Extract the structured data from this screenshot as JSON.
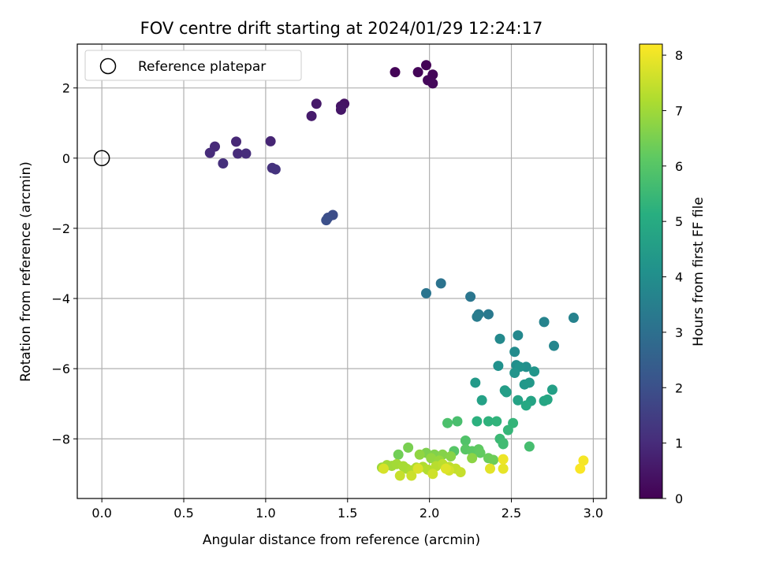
{
  "chart_data": {
    "type": "scatter",
    "title": "FOV centre drift starting at 2024/01/29 12:24:17",
    "xlabel": "Angular distance from reference (arcmin)",
    "ylabel": "Rotation from reference (arcmin)",
    "xlim": [
      -0.15,
      3.08
    ],
    "ylim": [
      -9.7,
      3.25
    ],
    "xticks": [
      "0.0",
      "0.5",
      "1.0",
      "1.5",
      "2.0",
      "2.5",
      "3.0"
    ],
    "yticks": [
      "2",
      "0",
      "−2",
      "−4",
      "−6",
      "−8"
    ],
    "grid": true,
    "legend": {
      "position": "top-left",
      "entries": [
        "Reference platepar"
      ]
    },
    "reference_point": {
      "x": 0.0,
      "y": 0.0
    },
    "colorbar": {
      "label": "Hours from first FF file",
      "range": [
        0,
        8.2
      ],
      "ticks": [
        "0",
        "1",
        "2",
        "3",
        "4",
        "5",
        "6",
        "7",
        "8"
      ],
      "colormap": "viridis"
    },
    "points": [
      {
        "x": 1.98,
        "y": 2.65,
        "c": 0.05
      },
      {
        "x": 1.79,
        "y": 2.45,
        "c": 0.08
      },
      {
        "x": 1.93,
        "y": 2.45,
        "c": 0.1
      },
      {
        "x": 2.02,
        "y": 2.38,
        "c": 0.12
      },
      {
        "x": 1.99,
        "y": 2.22,
        "c": 0.15
      },
      {
        "x": 2.02,
        "y": 2.13,
        "c": 0.18
      },
      {
        "x": 1.48,
        "y": 1.55,
        "c": 0.4
      },
      {
        "x": 1.46,
        "y": 1.48,
        "c": 0.45
      },
      {
        "x": 1.46,
        "y": 1.38,
        "c": 0.5
      },
      {
        "x": 1.31,
        "y": 1.55,
        "c": 0.55
      },
      {
        "x": 1.28,
        "y": 1.2,
        "c": 0.6
      },
      {
        "x": 1.03,
        "y": 0.48,
        "c": 0.85
      },
      {
        "x": 0.82,
        "y": 0.47,
        "c": 0.9
      },
      {
        "x": 0.69,
        "y": 0.33,
        "c": 0.95
      },
      {
        "x": 0.66,
        "y": 0.15,
        "c": 1.0
      },
      {
        "x": 0.83,
        "y": 0.13,
        "c": 1.0
      },
      {
        "x": 0.88,
        "y": 0.13,
        "c": 1.05
      },
      {
        "x": 0.74,
        "y": -0.15,
        "c": 1.1
      },
      {
        "x": 1.04,
        "y": -0.28,
        "c": 1.15
      },
      {
        "x": 1.06,
        "y": -0.32,
        "c": 1.2
      },
      {
        "x": 1.41,
        "y": -1.62,
        "c": 1.9
      },
      {
        "x": 1.38,
        "y": -1.7,
        "c": 1.95
      },
      {
        "x": 1.37,
        "y": -1.77,
        "c": 2.0
      },
      {
        "x": 2.07,
        "y": -3.57,
        "c": 3.1
      },
      {
        "x": 1.98,
        "y": -3.85,
        "c": 3.15
      },
      {
        "x": 2.25,
        "y": -3.95,
        "c": 3.2
      },
      {
        "x": 2.36,
        "y": -4.45,
        "c": 3.3
      },
      {
        "x": 2.3,
        "y": -4.45,
        "c": 3.35
      },
      {
        "x": 2.29,
        "y": -4.52,
        "c": 3.4
      },
      {
        "x": 2.88,
        "y": -4.55,
        "c": 3.6
      },
      {
        "x": 2.7,
        "y": -4.67,
        "c": 3.65
      },
      {
        "x": 2.76,
        "y": -5.35,
        "c": 3.75
      },
      {
        "x": 2.54,
        "y": -5.05,
        "c": 3.8
      },
      {
        "x": 2.43,
        "y": -5.15,
        "c": 3.85
      },
      {
        "x": 2.52,
        "y": -5.52,
        "c": 3.9
      },
      {
        "x": 2.53,
        "y": -5.9,
        "c": 4.0
      },
      {
        "x": 2.59,
        "y": -5.95,
        "c": 4.05
      },
      {
        "x": 2.42,
        "y": -5.92,
        "c": 4.1
      },
      {
        "x": 2.55,
        "y": -5.95,
        "c": 4.15
      },
      {
        "x": 2.52,
        "y": -6.12,
        "c": 4.2
      },
      {
        "x": 2.64,
        "y": -6.08,
        "c": 4.25
      },
      {
        "x": 2.58,
        "y": -6.45,
        "c": 4.3
      },
      {
        "x": 2.61,
        "y": -6.4,
        "c": 4.35
      },
      {
        "x": 2.28,
        "y": -6.4,
        "c": 4.4
      },
      {
        "x": 2.46,
        "y": -6.62,
        "c": 4.5
      },
      {
        "x": 2.47,
        "y": -6.67,
        "c": 4.55
      },
      {
        "x": 2.75,
        "y": -6.6,
        "c": 4.6
      },
      {
        "x": 2.32,
        "y": -6.9,
        "c": 4.65
      },
      {
        "x": 2.54,
        "y": -6.9,
        "c": 4.7
      },
      {
        "x": 2.62,
        "y": -6.92,
        "c": 4.75
      },
      {
        "x": 2.7,
        "y": -6.92,
        "c": 4.8
      },
      {
        "x": 2.72,
        "y": -6.88,
        "c": 4.85
      },
      {
        "x": 2.59,
        "y": -7.05,
        "c": 4.9
      },
      {
        "x": 2.29,
        "y": -7.5,
        "c": 5.2
      },
      {
        "x": 2.36,
        "y": -7.5,
        "c": 5.25
      },
      {
        "x": 2.41,
        "y": -7.5,
        "c": 5.3
      },
      {
        "x": 2.51,
        "y": -7.55,
        "c": 5.35
      },
      {
        "x": 2.48,
        "y": -7.75,
        "c": 5.4
      },
      {
        "x": 2.43,
        "y": -8.0,
        "c": 5.5
      },
      {
        "x": 2.45,
        "y": -8.12,
        "c": 5.55
      },
      {
        "x": 2.45,
        "y": -8.15,
        "c": 5.6
      },
      {
        "x": 2.61,
        "y": -8.22,
        "c": 5.7
      },
      {
        "x": 2.17,
        "y": -7.5,
        "c": 5.75
      },
      {
        "x": 2.11,
        "y": -7.55,
        "c": 5.8
      },
      {
        "x": 2.22,
        "y": -8.05,
        "c": 5.9
      },
      {
        "x": 2.15,
        "y": -8.35,
        "c": 6.0
      },
      {
        "x": 2.22,
        "y": -8.3,
        "c": 6.05
      },
      {
        "x": 2.26,
        "y": -8.35,
        "c": 6.1
      },
      {
        "x": 2.3,
        "y": -8.3,
        "c": 6.15
      },
      {
        "x": 2.31,
        "y": -8.4,
        "c": 6.2
      },
      {
        "x": 2.36,
        "y": -8.55,
        "c": 6.3
      },
      {
        "x": 2.39,
        "y": -8.6,
        "c": 6.35
      },
      {
        "x": 1.81,
        "y": -8.45,
        "c": 6.4
      },
      {
        "x": 1.87,
        "y": -8.25,
        "c": 6.5
      },
      {
        "x": 1.98,
        "y": -8.4,
        "c": 6.55
      },
      {
        "x": 2.03,
        "y": -8.45,
        "c": 6.6
      },
      {
        "x": 2.08,
        "y": -8.45,
        "c": 6.65
      },
      {
        "x": 2.13,
        "y": -8.5,
        "c": 6.7
      },
      {
        "x": 2.26,
        "y": -8.55,
        "c": 6.75
      },
      {
        "x": 1.94,
        "y": -8.45,
        "c": 6.8
      },
      {
        "x": 2.01,
        "y": -8.55,
        "c": 6.85
      },
      {
        "x": 2.06,
        "y": -8.62,
        "c": 6.9
      },
      {
        "x": 1.71,
        "y": -8.82,
        "c": 6.95
      },
      {
        "x": 1.74,
        "y": -8.75,
        "c": 7.0
      },
      {
        "x": 1.77,
        "y": -8.77,
        "c": 7.0
      },
      {
        "x": 1.8,
        "y": -8.72,
        "c": 7.05
      },
      {
        "x": 1.84,
        "y": -8.78,
        "c": 7.1
      },
      {
        "x": 1.86,
        "y": -8.85,
        "c": 7.1
      },
      {
        "x": 1.89,
        "y": -8.9,
        "c": 7.15
      },
      {
        "x": 1.92,
        "y": -8.82,
        "c": 7.2
      },
      {
        "x": 1.96,
        "y": -8.8,
        "c": 7.2
      },
      {
        "x": 1.99,
        "y": -8.88,
        "c": 7.25
      },
      {
        "x": 2.04,
        "y": -8.78,
        "c": 7.3
      },
      {
        "x": 2.08,
        "y": -8.72,
        "c": 7.35
      },
      {
        "x": 2.12,
        "y": -8.8,
        "c": 7.4
      },
      {
        "x": 2.16,
        "y": -8.85,
        "c": 7.45
      },
      {
        "x": 2.19,
        "y": -8.95,
        "c": 7.5
      },
      {
        "x": 1.82,
        "y": -9.05,
        "c": 7.5
      },
      {
        "x": 1.89,
        "y": -9.05,
        "c": 7.55
      },
      {
        "x": 2.02,
        "y": -9.0,
        "c": 7.6
      },
      {
        "x": 2.12,
        "y": -8.9,
        "c": 7.65
      },
      {
        "x": 1.72,
        "y": -8.85,
        "c": 7.7
      },
      {
        "x": 1.93,
        "y": -8.85,
        "c": 7.75
      },
      {
        "x": 2.1,
        "y": -8.85,
        "c": 7.8
      },
      {
        "x": 2.37,
        "y": -8.85,
        "c": 7.85
      },
      {
        "x": 2.45,
        "y": -8.85,
        "c": 7.9
      },
      {
        "x": 2.45,
        "y": -8.58,
        "c": 8.0
      },
      {
        "x": 2.94,
        "y": -8.62,
        "c": 8.1
      },
      {
        "x": 2.92,
        "y": -8.85,
        "c": 8.15
      }
    ]
  }
}
